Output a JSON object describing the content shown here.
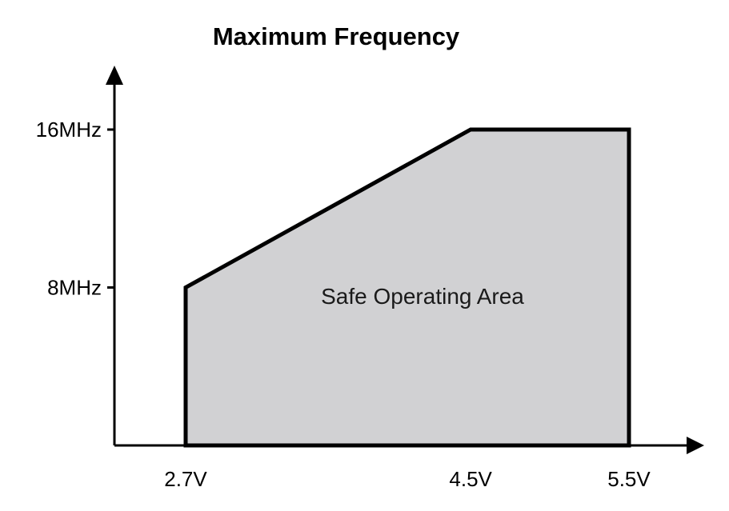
{
  "chart_data": {
    "type": "area",
    "title": "Maximum Frequency",
    "xlabel": "",
    "ylabel": "",
    "x_unit": "V",
    "y_unit": "MHz",
    "series": [
      {
        "points": [
          {
            "x": 2.7,
            "y": 8
          },
          {
            "x": 4.5,
            "y": 16
          },
          {
            "x": 5.5,
            "y": 16
          }
        ]
      }
    ],
    "x_ticks": [
      {
        "value": 2.7,
        "label": "2.7V"
      },
      {
        "value": 4.5,
        "label": "4.5V"
      },
      {
        "value": 5.5,
        "label": "5.5V"
      }
    ],
    "y_ticks": [
      {
        "value": 8,
        "label": "8MHz"
      },
      {
        "value": 16,
        "label": "16MHz"
      }
    ],
    "annotation": "Safe Operating Area",
    "area_fill": "#d1d1d3",
    "line_color": "#000000",
    "grid": false,
    "legend": "none"
  }
}
